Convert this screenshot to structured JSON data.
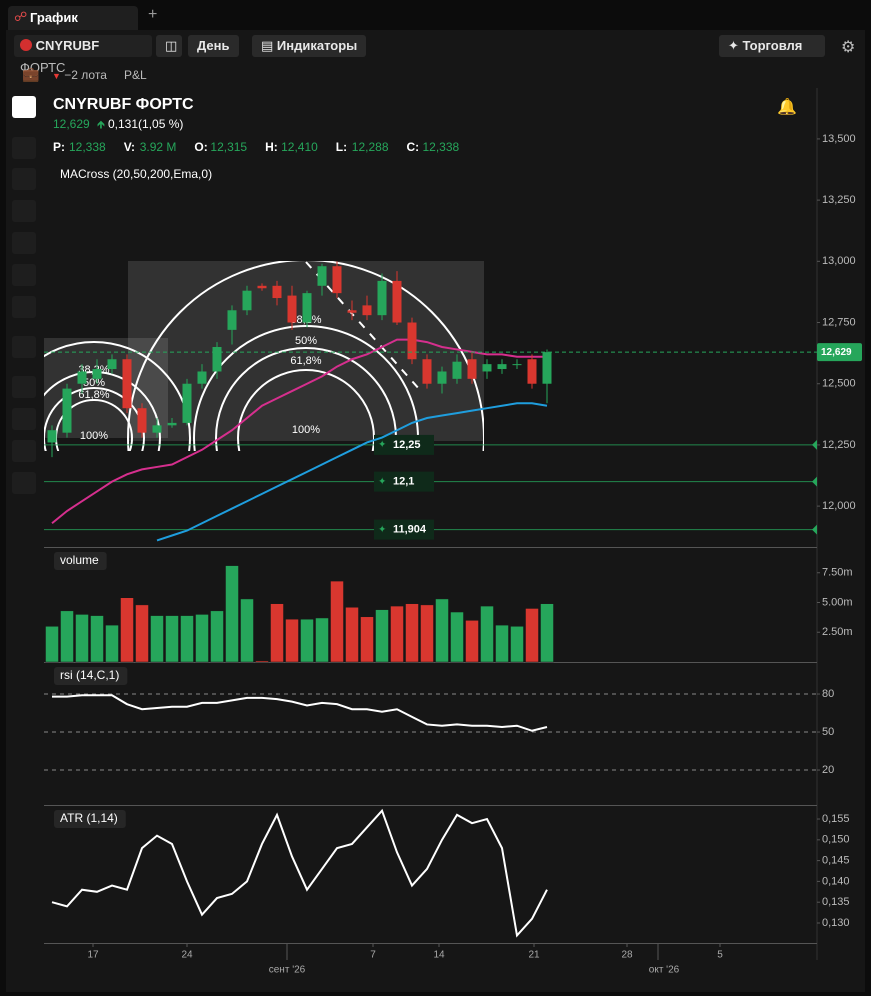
{
  "tab": "График",
  "toolbar": {
    "instrument": "CNYRUBF",
    "exchange": "ФОРТС",
    "period": "День",
    "indicators": "Индикаторы",
    "trade": "Торговля"
  },
  "position": {
    "lots": "−2 лота",
    "pnl": "P&L"
  },
  "header": {
    "title": "CNYRUBF ФОРТС",
    "price": "12,629",
    "change": "0,131(1,05 %)",
    "stats": [
      {
        "label": "P:",
        "value": "12,338"
      },
      {
        "label": "V:",
        "value": "3.92 M"
      },
      {
        "label": "O:",
        "value": "12,315"
      },
      {
        "label": "H:",
        "value": "12,410"
      },
      {
        "label": "L:",
        "value": "12,288"
      },
      {
        "label": "C:",
        "value": "12,338"
      }
    ],
    "indicator": "MACross (20,50,200,Ema,0)"
  },
  "fib_labels": [
    "38,2%",
    "50%",
    "61,8%",
    "100%"
  ],
  "xlabels": [
    "17",
    "24",
    "сент '26",
    "7",
    "14",
    "21",
    "28",
    "окт '26",
    "5"
  ],
  "chart_data": [
    {
      "type": "candlestick",
      "up_color": "#26a65b",
      "down_color": "#d9372f",
      "candles": [
        [
          12.26,
          12.33,
          12.2,
          12.31
        ],
        [
          12.3,
          12.5,
          12.28,
          12.48
        ],
        [
          12.5,
          12.58,
          12.46,
          12.55
        ],
        [
          12.52,
          12.6,
          12.5,
          12.56
        ],
        [
          12.56,
          12.62,
          12.54,
          12.6
        ],
        [
          12.6,
          12.62,
          12.38,
          12.4
        ],
        [
          12.4,
          12.42,
          12.28,
          12.3
        ],
        [
          12.3,
          12.36,
          12.28,
          12.33
        ],
        [
          12.33,
          12.36,
          12.32,
          12.34
        ],
        [
          12.34,
          12.52,
          12.33,
          12.5
        ],
        [
          12.5,
          12.58,
          12.48,
          12.55
        ],
        [
          12.55,
          12.67,
          12.52,
          12.65
        ],
        [
          12.72,
          12.82,
          12.66,
          12.8
        ],
        [
          12.8,
          12.9,
          12.78,
          12.88
        ],
        [
          12.9,
          12.91,
          12.88,
          12.89
        ],
        [
          12.9,
          12.92,
          12.82,
          12.85
        ],
        [
          12.86,
          12.9,
          12.72,
          12.75
        ],
        [
          12.75,
          12.88,
          12.73,
          12.87
        ],
        [
          12.9,
          12.99,
          12.86,
          12.98
        ],
        [
          12.98,
          13.0,
          12.85,
          12.87
        ],
        [
          12.8,
          12.84,
          12.76,
          12.79
        ],
        [
          12.82,
          12.86,
          12.76,
          12.78
        ],
        [
          12.78,
          12.95,
          12.76,
          12.92
        ],
        [
          12.92,
          12.96,
          12.74,
          12.75
        ],
        [
          12.75,
          12.77,
          12.58,
          12.6
        ],
        [
          12.6,
          12.62,
          12.48,
          12.5
        ],
        [
          12.5,
          12.57,
          12.46,
          12.55
        ],
        [
          12.52,
          12.62,
          12.5,
          12.59
        ],
        [
          12.6,
          12.63,
          12.5,
          12.52
        ],
        [
          12.55,
          12.6,
          12.52,
          12.58
        ],
        [
          12.56,
          12.6,
          12.54,
          12.58
        ],
        [
          12.58,
          12.6,
          12.56,
          12.58
        ],
        [
          12.6,
          12.62,
          12.48,
          12.5
        ],
        [
          12.5,
          12.64,
          12.42,
          12.629
        ]
      ],
      "series": [
        {
          "color": "#d62f8e",
          "values": [
            11.93,
            11.98,
            12.02,
            12.06,
            12.1,
            12.13,
            12.15,
            12.16,
            12.17,
            12.2,
            12.23,
            12.27,
            12.31,
            12.36,
            12.41,
            12.44,
            12.47,
            12.5,
            12.53,
            12.57,
            12.6,
            12.62,
            12.65,
            12.68,
            12.68,
            12.67,
            12.65,
            12.64,
            12.63,
            12.62,
            12.62,
            12.61,
            12.61,
            12.61
          ]
        },
        {
          "color": "#1f9ede",
          "values": [
            null,
            null,
            null,
            null,
            null,
            null,
            null,
            11.86,
            11.88,
            11.9,
            11.93,
            11.96,
            11.99,
            12.02,
            12.05,
            12.08,
            12.11,
            12.14,
            12.17,
            12.2,
            12.23,
            12.26,
            12.28,
            12.31,
            12.34,
            12.36,
            12.37,
            12.38,
            12.39,
            12.4,
            12.41,
            12.42,
            12.42,
            12.41
          ]
        }
      ],
      "levels": [
        {
          "value": 12.25,
          "label": "12,25"
        },
        {
          "value": 12.1,
          "label": "12,1"
        },
        {
          "value": 11.904,
          "label": "11,904"
        }
      ],
      "level_color": "#26a65b",
      "last_price": {
        "value": 12.629,
        "label": "12,629"
      },
      "ylim": [
        11.833,
        13.708
      ],
      "yticks": [
        {
          "value": 12.0,
          "label": "12,000"
        },
        {
          "value": 12.25,
          "label": "12,250"
        },
        {
          "value": 12.5,
          "label": "12,500"
        },
        {
          "value": 12.75,
          "label": "12,750"
        },
        {
          "value": 13.0,
          "label": "13,000"
        },
        {
          "value": 13.25,
          "label": "13,250"
        },
        {
          "value": 13.5,
          "label": "13,500"
        }
      ]
    },
    {
      "type": "bar",
      "title": "volume",
      "values": [
        3.0,
        4.3,
        4.0,
        3.9,
        3.1,
        5.4,
        4.8,
        3.9,
        3.9,
        3.9,
        4.0,
        4.3,
        8.1,
        5.3,
        0.1,
        4.9,
        3.6,
        3.6,
        3.7,
        6.8,
        4.6,
        3.8,
        4.4,
        4.7,
        4.9,
        4.8,
        5.3,
        4.2,
        3.5,
        4.7,
        3.1,
        3.0,
        4.5,
        4.9
      ],
      "ylim": [
        0,
        9.58
      ],
      "yticks": [
        {
          "value": 2.5,
          "label": "2.50m"
        },
        {
          "value": 5,
          "label": "5.00m"
        },
        {
          "value": 7.5,
          "label": "7.50m"
        }
      ]
    },
    {
      "type": "line",
      "title": "rsi (14,C,1)",
      "color": "#ffffff",
      "values": [
        78,
        78,
        79,
        79,
        79,
        72,
        68,
        69,
        70,
        70,
        73,
        73,
        75,
        77,
        77,
        76,
        74,
        71,
        73,
        72,
        68,
        68,
        66,
        68,
        62,
        56,
        55,
        56,
        55,
        55,
        54,
        55,
        51,
        54
      ],
      "ylim": [
        -7.6,
        104.5
      ],
      "yticks": [
        20,
        50,
        80
      ],
      "grid": true
    },
    {
      "type": "line",
      "title": "ATR (1,14)",
      "color": "#ffffff",
      "values": [
        0.135,
        0.134,
        0.138,
        0.1375,
        0.139,
        0.138,
        0.148,
        0.151,
        0.149,
        0.14,
        0.132,
        0.136,
        0.137,
        0.14,
        0.149,
        0.156,
        0.146,
        0.138,
        0.143,
        0.148,
        0.149,
        0.153,
        0.157,
        0.147,
        0.139,
        0.143,
        0.15,
        0.156,
        0.154,
        0.155,
        0.148,
        0.127,
        0.131,
        0.138
      ],
      "ylim": [
        0.12519,
        0.15813
      ],
      "yticks": [
        {
          "value": 0.13,
          "label": "0,130"
        },
        {
          "value": 0.135,
          "label": "0,135"
        },
        {
          "value": 0.14,
          "label": "0,140"
        },
        {
          "value": 0.145,
          "label": "0,145"
        },
        {
          "value": 0.15,
          "label": "0,150"
        },
        {
          "value": 0.155,
          "label": "0,155"
        }
      ]
    }
  ]
}
